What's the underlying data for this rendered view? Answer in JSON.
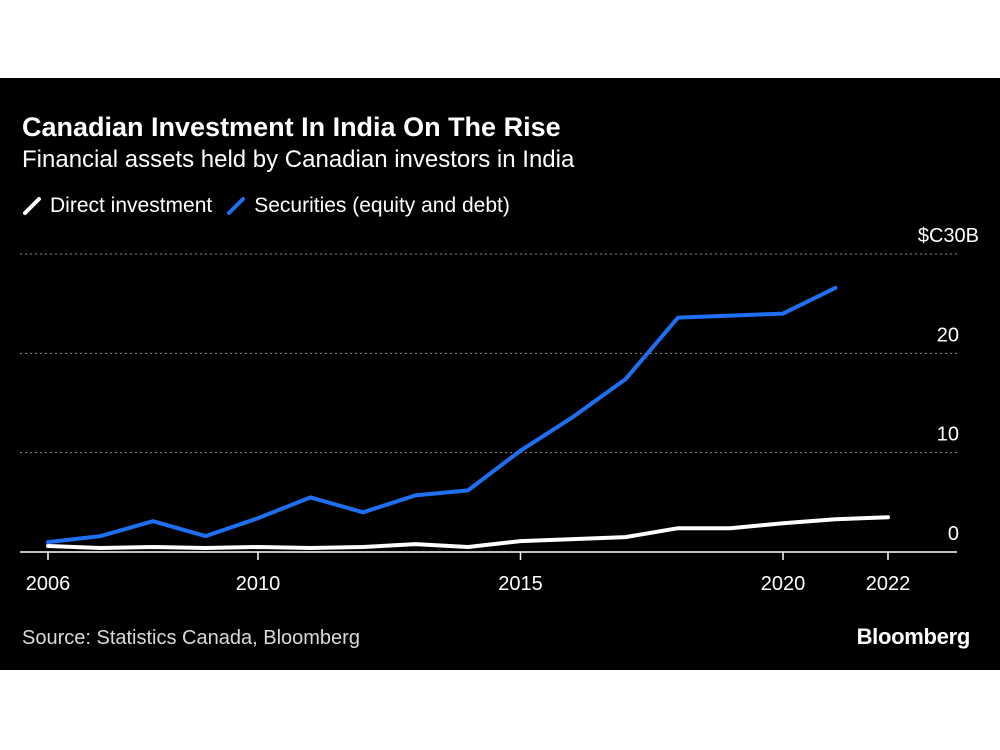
{
  "chart_data": {
    "type": "line",
    "title": "Canadian Investment In India On The Rise",
    "subtitle": "Financial assets held by Canadian investors in India",
    "unit_label": "$C30B",
    "x": [
      2006,
      2007,
      2008,
      2009,
      2010,
      2011,
      2012,
      2013,
      2014,
      2015,
      2016,
      2017,
      2018,
      2019,
      2020,
      2021,
      2022
    ],
    "series": [
      {
        "name": "Direct investment",
        "color": "#ffffff",
        "values": [
          0.6,
          0.4,
          0.5,
          0.4,
          0.5,
          0.4,
          0.5,
          0.8,
          0.5,
          1.1,
          1.3,
          1.5,
          2.4,
          2.4,
          2.9,
          3.3,
          3.5
        ]
      },
      {
        "name": "Securities (equity and debt)",
        "color": "#1f6ff2",
        "values": [
          1.0,
          1.6,
          3.1,
          1.6,
          3.4,
          5.5,
          4.0,
          5.7,
          6.2,
          10.2,
          13.6,
          17.4,
          23.6,
          23.8,
          24.0,
          26.6,
          null
        ]
      }
    ],
    "ylim": [
      0,
      30
    ],
    "y_ticks": [
      0,
      10,
      20
    ],
    "x_ticks": [
      2006,
      2010,
      2015,
      2020,
      2022
    ],
    "grid": true,
    "legend": "top-left"
  },
  "source": "Source: Statistics Canada, Bloomberg",
  "brand": "Bloomberg",
  "colors": {
    "background": "#000000",
    "accent": "#1f6ff2",
    "text": "#ffffff",
    "grid": "#8c8c8c"
  }
}
